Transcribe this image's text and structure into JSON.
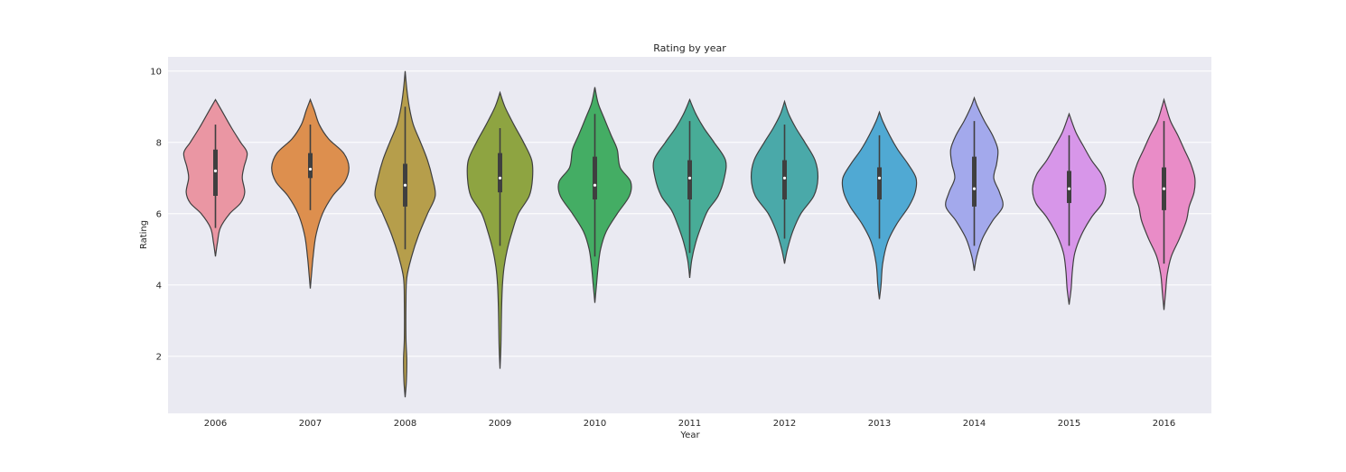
{
  "chart_data": {
    "type": "violin",
    "title": "Rating by year",
    "xlabel": "Year",
    "ylabel": "Rating",
    "ylim": [
      0.4,
      10.4
    ],
    "yticks": [
      2,
      4,
      6,
      8,
      10
    ],
    "grid": true,
    "categories": [
      "2006",
      "2007",
      "2008",
      "2009",
      "2010",
      "2011",
      "2012",
      "2013",
      "2014",
      "2015",
      "2016"
    ],
    "colors": [
      "#ea96a3",
      "#dd8f4e",
      "#b69e4b",
      "#8ea441",
      "#44ad64",
      "#48ac97",
      "#4aa9a9",
      "#50a9d3",
      "#a3a9ec",
      "#d796e9",
      "#e98cc7"
    ],
    "violins": [
      {
        "year": "2006",
        "min": 4.8,
        "max": 9.2,
        "q1": 6.5,
        "median": 7.2,
        "q3": 7.8,
        "whisker_low": 5.6,
        "whisker_high": 8.5,
        "density": [
          [
            4.8,
            0.0
          ],
          [
            5.2,
            0.05
          ],
          [
            5.6,
            0.12
          ],
          [
            6.0,
            0.35
          ],
          [
            6.3,
            0.62
          ],
          [
            6.6,
            0.72
          ],
          [
            7.0,
            0.66
          ],
          [
            7.3,
            0.7
          ],
          [
            7.7,
            0.78
          ],
          [
            8.0,
            0.62
          ],
          [
            8.4,
            0.4
          ],
          [
            8.8,
            0.2
          ],
          [
            9.2,
            0.0
          ]
        ]
      },
      {
        "year": "2007",
        "min": 3.9,
        "max": 9.2,
        "q1": 7.0,
        "median": 7.25,
        "q3": 7.7,
        "whisker_low": 6.1,
        "whisker_high": 8.5,
        "density": [
          [
            3.9,
            0.0
          ],
          [
            4.3,
            0.03
          ],
          [
            4.8,
            0.07
          ],
          [
            5.4,
            0.14
          ],
          [
            6.0,
            0.3
          ],
          [
            6.5,
            0.55
          ],
          [
            6.9,
            0.85
          ],
          [
            7.3,
            0.95
          ],
          [
            7.7,
            0.82
          ],
          [
            8.1,
            0.45
          ],
          [
            8.5,
            0.22
          ],
          [
            8.9,
            0.1
          ],
          [
            9.2,
            0.0
          ]
        ]
      },
      {
        "year": "2008",
        "min": 0.85,
        "max": 10.0,
        "q1": 6.2,
        "median": 6.8,
        "q3": 7.4,
        "whisker_low": 5.0,
        "whisker_high": 9.0,
        "density": [
          [
            0.85,
            0.0
          ],
          [
            1.3,
            0.03
          ],
          [
            1.9,
            0.04
          ],
          [
            2.5,
            0.02
          ],
          [
            3.5,
            0.02
          ],
          [
            4.2,
            0.04
          ],
          [
            4.8,
            0.16
          ],
          [
            5.4,
            0.33
          ],
          [
            6.0,
            0.55
          ],
          [
            6.5,
            0.74
          ],
          [
            7.0,
            0.67
          ],
          [
            7.5,
            0.55
          ],
          [
            8.0,
            0.38
          ],
          [
            8.5,
            0.2
          ],
          [
            9.0,
            0.1
          ],
          [
            9.5,
            0.04
          ],
          [
            10.0,
            0.0
          ]
        ]
      },
      {
        "year": "2009",
        "min": 1.65,
        "max": 9.4,
        "q1": 6.6,
        "median": 7.0,
        "q3": 7.7,
        "whisker_low": 5.1,
        "whisker_high": 8.4,
        "density": [
          [
            1.65,
            0.0
          ],
          [
            2.2,
            0.02
          ],
          [
            2.8,
            0.03
          ],
          [
            3.4,
            0.04
          ],
          [
            4.0,
            0.06
          ],
          [
            4.5,
            0.1
          ],
          [
            5.0,
            0.18
          ],
          [
            5.5,
            0.3
          ],
          [
            6.0,
            0.45
          ],
          [
            6.5,
            0.72
          ],
          [
            7.0,
            0.8
          ],
          [
            7.5,
            0.78
          ],
          [
            8.0,
            0.58
          ],
          [
            8.5,
            0.34
          ],
          [
            9.0,
            0.12
          ],
          [
            9.4,
            0.0
          ]
        ]
      },
      {
        "year": "2010",
        "min": 3.5,
        "max": 9.55,
        "q1": 6.4,
        "median": 6.8,
        "q3": 7.6,
        "whisker_low": 4.8,
        "whisker_high": 8.8,
        "density": [
          [
            3.5,
            0.0
          ],
          [
            4.0,
            0.04
          ],
          [
            4.5,
            0.08
          ],
          [
            5.0,
            0.14
          ],
          [
            5.5,
            0.28
          ],
          [
            6.0,
            0.55
          ],
          [
            6.5,
            0.85
          ],
          [
            6.9,
            0.88
          ],
          [
            7.3,
            0.62
          ],
          [
            7.8,
            0.55
          ],
          [
            8.2,
            0.4
          ],
          [
            8.7,
            0.22
          ],
          [
            9.1,
            0.08
          ],
          [
            9.55,
            0.0
          ]
        ]
      },
      {
        "year": "2011",
        "min": 4.2,
        "max": 9.2,
        "q1": 6.4,
        "median": 7.0,
        "q3": 7.5,
        "whisker_low": 4.9,
        "whisker_high": 8.6,
        "density": [
          [
            4.2,
            0.0
          ],
          [
            4.7,
            0.05
          ],
          [
            5.2,
            0.15
          ],
          [
            5.7,
            0.3
          ],
          [
            6.1,
            0.45
          ],
          [
            6.5,
            0.7
          ],
          [
            7.0,
            0.85
          ],
          [
            7.5,
            0.88
          ],
          [
            8.0,
            0.6
          ],
          [
            8.4,
            0.35
          ],
          [
            8.8,
            0.15
          ],
          [
            9.2,
            0.0
          ]
        ]
      },
      {
        "year": "2012",
        "min": 4.6,
        "max": 9.15,
        "q1": 6.4,
        "median": 7.0,
        "q3": 7.5,
        "whisker_low": 5.3,
        "whisker_high": 8.5,
        "density": [
          [
            4.6,
            0.0
          ],
          [
            5.0,
            0.07
          ],
          [
            5.5,
            0.2
          ],
          [
            6.0,
            0.4
          ],
          [
            6.5,
            0.72
          ],
          [
            7.0,
            0.82
          ],
          [
            7.5,
            0.75
          ],
          [
            8.0,
            0.5
          ],
          [
            8.4,
            0.28
          ],
          [
            8.8,
            0.1
          ],
          [
            9.15,
            0.0
          ]
        ]
      },
      {
        "year": "2013",
        "min": 3.6,
        "max": 8.85,
        "q1": 6.4,
        "median": 7.0,
        "q3": 7.3,
        "whisker_low": 5.3,
        "whisker_high": 8.2,
        "density": [
          [
            3.6,
            0.0
          ],
          [
            4.0,
            0.04
          ],
          [
            4.6,
            0.08
          ],
          [
            5.2,
            0.2
          ],
          [
            5.7,
            0.42
          ],
          [
            6.2,
            0.72
          ],
          [
            6.6,
            0.88
          ],
          [
            7.0,
            0.9
          ],
          [
            7.4,
            0.7
          ],
          [
            7.8,
            0.45
          ],
          [
            8.2,
            0.25
          ],
          [
            8.6,
            0.08
          ],
          [
            8.85,
            0.0
          ]
        ]
      },
      {
        "year": "2014",
        "min": 4.4,
        "max": 9.25,
        "q1": 6.2,
        "median": 6.7,
        "q3": 7.6,
        "whisker_low": 5.1,
        "whisker_high": 8.6,
        "density": [
          [
            4.4,
            0.0
          ],
          [
            4.8,
            0.06
          ],
          [
            5.3,
            0.2
          ],
          [
            5.8,
            0.45
          ],
          [
            6.2,
            0.7
          ],
          [
            6.6,
            0.62
          ],
          [
            7.0,
            0.48
          ],
          [
            7.4,
            0.55
          ],
          [
            7.8,
            0.58
          ],
          [
            8.2,
            0.45
          ],
          [
            8.6,
            0.25
          ],
          [
            9.0,
            0.08
          ],
          [
            9.25,
            0.0
          ]
        ]
      },
      {
        "year": "2015",
        "min": 3.45,
        "max": 8.8,
        "q1": 6.3,
        "median": 6.7,
        "q3": 7.2,
        "whisker_low": 5.1,
        "whisker_high": 8.2,
        "density": [
          [
            3.45,
            0.0
          ],
          [
            3.9,
            0.05
          ],
          [
            4.4,
            0.08
          ],
          [
            4.9,
            0.14
          ],
          [
            5.4,
            0.3
          ],
          [
            5.9,
            0.55
          ],
          [
            6.3,
            0.82
          ],
          [
            6.7,
            0.9
          ],
          [
            7.1,
            0.8
          ],
          [
            7.5,
            0.55
          ],
          [
            7.9,
            0.35
          ],
          [
            8.3,
            0.16
          ],
          [
            8.8,
            0.0
          ]
        ]
      },
      {
        "year": "2016",
        "min": 3.3,
        "max": 9.2,
        "q1": 6.1,
        "median": 6.7,
        "q3": 7.3,
        "whisker_low": 4.6,
        "whisker_high": 8.6,
        "density": [
          [
            3.3,
            0.0
          ],
          [
            3.8,
            0.04
          ],
          [
            4.3,
            0.08
          ],
          [
            4.8,
            0.18
          ],
          [
            5.3,
            0.38
          ],
          [
            5.8,
            0.55
          ],
          [
            6.2,
            0.62
          ],
          [
            6.6,
            0.74
          ],
          [
            7.0,
            0.76
          ],
          [
            7.4,
            0.66
          ],
          [
            7.8,
            0.5
          ],
          [
            8.2,
            0.34
          ],
          [
            8.6,
            0.16
          ],
          [
            9.0,
            0.05
          ],
          [
            9.2,
            0.0
          ]
        ]
      }
    ]
  }
}
